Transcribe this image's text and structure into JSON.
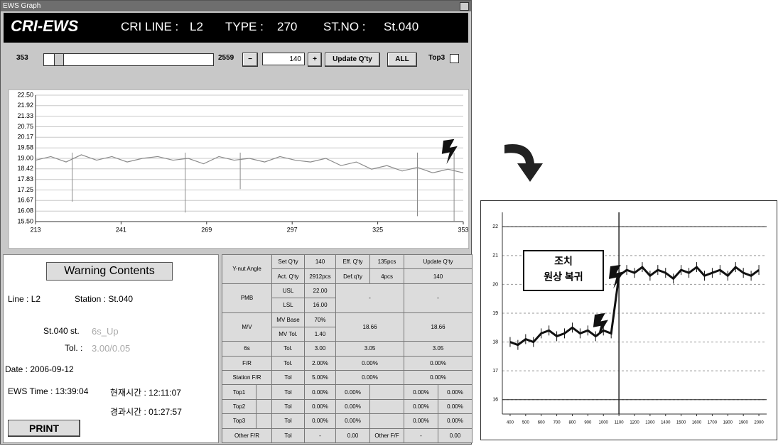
{
  "window_title": "EWS Graph",
  "header": {
    "app": "CRI-EWS",
    "line_label": "CRI LINE :",
    "line": "L2",
    "type_label": "TYPE :",
    "type": "270",
    "station_label": "ST.NO :",
    "station": "St.040"
  },
  "controls": {
    "min": "353",
    "max": "2559",
    "minus": "−",
    "count": "140",
    "plus": "+",
    "update": "Update Q'ty",
    "all": "ALL",
    "top3": "Top3"
  },
  "graph": {
    "xlim": [
      213,
      353
    ],
    "ylim": [
      15.5,
      22.5
    ],
    "xticks": [
      213,
      241,
      269,
      297,
      325,
      353
    ],
    "yticks": [
      {
        "value": 22.5,
        "label": "22.50"
      },
      21.92,
      21.33,
      20.75,
      20.17,
      19.58,
      {
        "value": 19.0,
        "label": "19.00"
      },
      18.42,
      17.83,
      17.25,
      16.67,
      16.08,
      {
        "value": 15.5,
        "label": "15.50"
      }
    ],
    "x": [
      213,
      218,
      223,
      228,
      233,
      238,
      243,
      248,
      253,
      258,
      263,
      268,
      273,
      278,
      283,
      288,
      293,
      298,
      303,
      308,
      313,
      318,
      323,
      328,
      333,
      338,
      343,
      348,
      353
    ],
    "values": [
      18.9,
      19.1,
      18.8,
      19.2,
      18.9,
      19.1,
      18.8,
      19.0,
      19.1,
      18.9,
      19.0,
      18.7,
      19.1,
      18.9,
      19.0,
      18.8,
      19.1,
      18.9,
      18.8,
      19.0,
      18.6,
      18.8,
      18.4,
      18.6,
      18.3,
      18.5,
      18.2,
      18.4,
      18.2
    ],
    "dips": {
      "x": [
        225,
        262,
        280,
        338,
        350
      ],
      "values": [
        16.6,
        16.0,
        17.3,
        15.8,
        15.5
      ]
    },
    "color": "#8a8a8a"
  },
  "warning": {
    "title": "Warning Contents",
    "line": "Line : L2",
    "station": "Station : St.040",
    "item_label": "St.040 st.",
    "item": "6s_Up",
    "tol_label": "Tol. :",
    "tol": "3.00/0.05",
    "date": "Date : 2006-09-12",
    "ews_time": "EWS Time : 13:39:04",
    "current_time": "현재시간 : 12:11:07",
    "elapsed_time": "경과시간 : 01:27:57",
    "print": "PRINT"
  },
  "table": {
    "rows": [
      [
        "Y-nut Angle",
        "Set Q'ty",
        "140",
        "Eff. Q'ty",
        "135pcs",
        "Update Q'ty"
      ],
      [
        "Act. Q'ty",
        "2912pcs",
        "Def.q'ty",
        "4pcs",
        "140"
      ],
      [
        "PMB",
        "USL",
        "22.00",
        "-",
        "-"
      ],
      [
        "LSL",
        "16.00"
      ],
      [
        "M/V",
        "MV Base",
        "70%",
        "18.66",
        "18.66"
      ],
      [
        "MV Tol.",
        "1.40"
      ],
      [
        "6s",
        "Tol.",
        "3.00",
        "3.05",
        "3.05"
      ],
      [
        "F/R",
        "Tol.",
        "2.00%",
        "0.00%",
        "0.00%"
      ],
      [
        "Station F/R",
        "Tol",
        "5.00%",
        "0.00%",
        "0.00%"
      ],
      [
        "Top1",
        "Tol",
        "0.00%",
        "0.00%",
        "0.00%",
        "0.00%"
      ],
      [
        "Top2",
        "Tol",
        "0.00%",
        "0.00%",
        "0.00%",
        "0.00%"
      ],
      [
        "Top3",
        "Tol",
        "0.00%",
        "0.00%",
        "0.00%",
        "0.00%"
      ],
      [
        "Other F/R",
        "Tol",
        "-",
        "0.00",
        "Other F/F",
        "-",
        "0.00"
      ]
    ]
  },
  "result_chart": {
    "xlim": [
      350,
      2050
    ],
    "ylim": [
      15.5,
      22.5
    ],
    "xticks": [
      400,
      500,
      600,
      700,
      800,
      900,
      1000,
      1100,
      1200,
      1300,
      1400,
      1500,
      1600,
      1700,
      1800,
      1900,
      2000
    ],
    "yticks": [
      16,
      17,
      18,
      19,
      20,
      21,
      22
    ],
    "x": [
      400,
      450,
      500,
      550,
      600,
      650,
      700,
      750,
      800,
      850,
      900,
      950,
      1000,
      1050,
      1100,
      1150,
      1200,
      1250,
      1300,
      1350,
      1400,
      1450,
      1500,
      1550,
      1600,
      1650,
      1700,
      1750,
      1800,
      1850,
      1900,
      1950,
      2000
    ],
    "values": [
      18.0,
      17.9,
      18.1,
      18.0,
      18.3,
      18.4,
      18.2,
      18.3,
      18.5,
      18.3,
      18.4,
      18.2,
      18.4,
      18.3,
      20.3,
      20.5,
      20.4,
      20.6,
      20.3,
      20.5,
      20.4,
      20.2,
      20.5,
      20.4,
      20.6,
      20.3,
      20.4,
      20.5,
      20.3,
      20.6,
      20.4,
      20.3,
      20.5
    ],
    "usl": 22,
    "lsl": 16,
    "event_x": 1100,
    "annotation": [
      "조치",
      "원상 복귀"
    ],
    "color": "#111"
  }
}
